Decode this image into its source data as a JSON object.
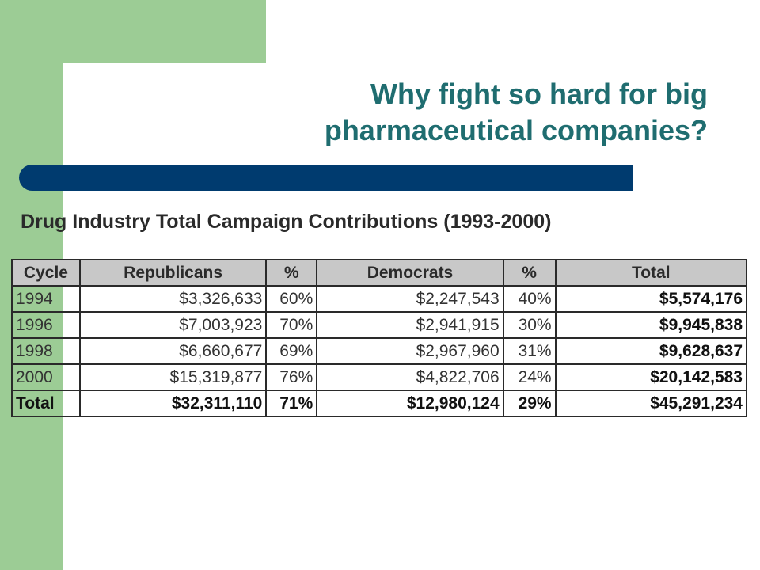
{
  "slide": {
    "title_line1": "Why fight so hard for big",
    "title_line2": "pharmaceutical companies?",
    "colors": {
      "green": "#9ccc95",
      "title_teal": "#1f6d70",
      "navy_bar": "#003b6f",
      "header_gray": "#c8c8c8"
    }
  },
  "table": {
    "title": "Drug Industry Total Campaign Contributions (1993-2000)",
    "headers": [
      "Cycle",
      "Republicans",
      "%",
      "Democrats",
      "%",
      "Total"
    ],
    "rows": [
      [
        "1994",
        "$3,326,633",
        "60%",
        "$2,247,543",
        "40%",
        "$5,574,176"
      ],
      [
        "1996",
        "$7,003,923",
        "70%",
        "$2,941,915",
        "30%",
        "$9,945,838"
      ],
      [
        "1998",
        "$6,660,677",
        "69%",
        "$2,967,960",
        "31%",
        "$9,628,637"
      ],
      [
        "2000",
        "$15,319,877",
        "76%",
        "$4,822,706",
        "24%",
        "$20,142,583"
      ]
    ],
    "total_row": [
      "Total",
      "$32,311,110",
      "71%",
      "$12,980,124",
      "29%",
      "$45,291,234"
    ]
  }
}
